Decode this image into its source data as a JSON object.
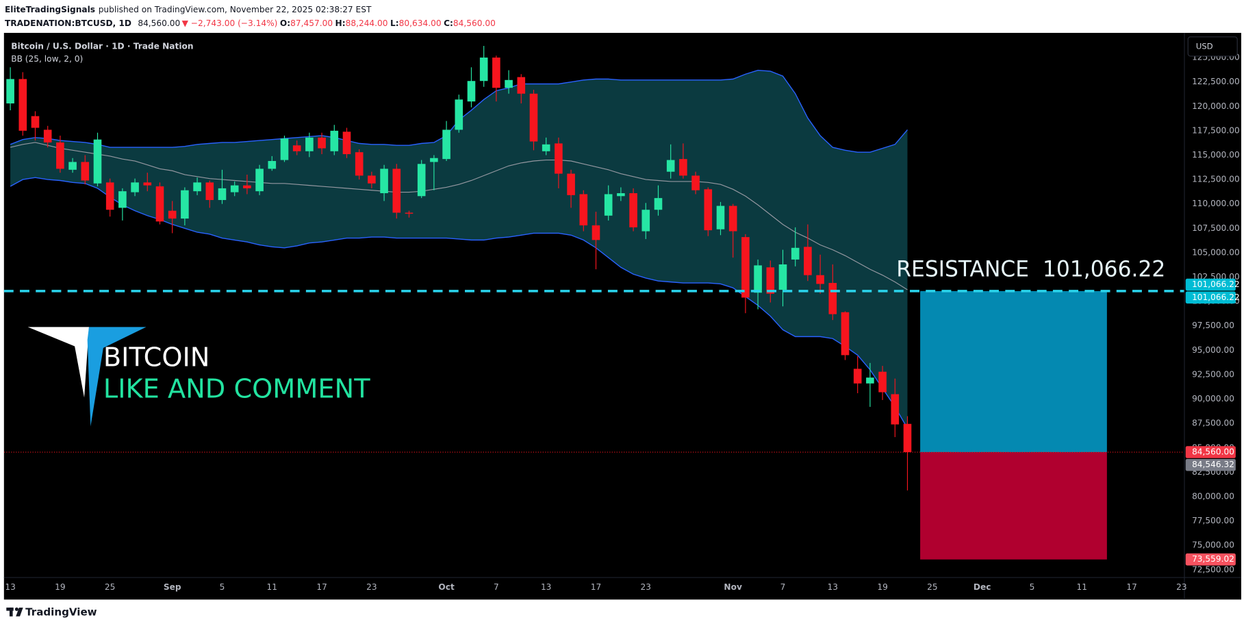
{
  "header": {
    "author": "EliteTradingSignals",
    "published": "published on TradingView.com, November 22, 2025 02:38:27 EST",
    "symbol": "TRADENATION:BTCUSD, 1D",
    "price": "84,560.00",
    "change": "▼ −2,743.00 (−3.14%)",
    "ohlc": [
      {
        "key": "O:",
        "value": "87,457.00"
      },
      {
        "key": "H:",
        "value": "88,244.00"
      },
      {
        "key": "L:",
        "value": "80,634.00"
      },
      {
        "key": "C:",
        "value": "84,560.00"
      }
    ]
  },
  "watermark": {
    "title": "BITCOIN",
    "subtitle": "LIKE AND COMMENT"
  },
  "footer": {
    "brand": "TradingView"
  },
  "chart_data": {
    "type": "candlestick",
    "title": "Bitcoin / U.S. Dollar · 1D · Trade Nation",
    "currency": "USD",
    "up_color": "#26e6a4",
    "down_color": "#f7151e",
    "grid": false,
    "categories": [
      "13",
      null,
      null,
      null,
      "19",
      null,
      null,
      null,
      "25",
      null,
      null,
      null,
      null,
      "Sep",
      null,
      null,
      null,
      "5",
      null,
      null,
      null,
      "11",
      null,
      null,
      null,
      "17",
      null,
      null,
      null,
      "23",
      null,
      null,
      null,
      null,
      null,
      "Oct",
      null,
      null,
      null,
      "7",
      null,
      null,
      null,
      "13",
      null,
      null,
      null,
      "17",
      null,
      null,
      null,
      "23",
      null,
      null,
      null,
      null,
      null,
      null,
      "Nov",
      null,
      null,
      null,
      "7",
      null,
      null,
      null,
      "13",
      null,
      null,
      null,
      "19",
      null,
      null,
      null,
      "25",
      null,
      null,
      null,
      "Dec",
      null,
      null,
      null,
      "5",
      null,
      null,
      null,
      "11",
      null,
      null,
      null,
      "17",
      null,
      null,
      null,
      "23"
    ],
    "open": [
      120300,
      122800,
      119000,
      117600,
      116300,
      113500,
      114300,
      112100,
      112200,
      109600,
      111200,
      112200,
      111800,
      109300,
      108500,
      111300,
      112200,
      110400,
      111200,
      111900,
      111300,
      113600,
      114500,
      116000,
      115400,
      116800,
      115400,
      117400,
      115300,
      112900,
      111100,
      113600,
      109100,
      110800,
      114300,
      114600,
      117600,
      120500,
      122600,
      125000,
      121900,
      123000,
      121300,
      115400,
      116200,
      113100,
      111000,
      107800,
      108800,
      110800,
      111100,
      107200,
      109400,
      113300,
      114600,
      112900,
      111500,
      107400,
      109800,
      106600,
      100900,
      103500,
      101200,
      104300,
      105600,
      102700,
      101900,
      98900,
      93100,
      91600,
      92800,
      90500,
      87457,
      null,
      null,
      null,
      null,
      null,
      null,
      null,
      null,
      null,
      null,
      null,
      null,
      null,
      null,
      null,
      null,
      null,
      null,
      null,
      null,
      null,
      null
    ],
    "high": [
      124000,
      123500,
      119500,
      118000,
      117000,
      114700,
      115000,
      117300,
      112600,
      111600,
      112600,
      113200,
      112200,
      110300,
      111700,
      112700,
      112400,
      113500,
      112300,
      113000,
      114000,
      114900,
      117000,
      116500,
      117300,
      117300,
      118100,
      117800,
      115600,
      113300,
      114000,
      114100,
      109300,
      114500,
      115000,
      118500,
      121200,
      124000,
      126200,
      125200,
      123700,
      123300,
      121700,
      116800,
      116800,
      113500,
      111400,
      109200,
      111900,
      111700,
      111600,
      110100,
      111900,
      116100,
      116200,
      113300,
      111700,
      110200,
      110000,
      106900,
      104300,
      104200,
      105300,
      107600,
      107900,
      104800,
      103800,
      99000,
      94400,
      93700,
      93400,
      92100,
      88244,
      null,
      null,
      null,
      null,
      null,
      null,
      null,
      null,
      null,
      null,
      null,
      null,
      null,
      null,
      null,
      null,
      null,
      null,
      null,
      null,
      null,
      null
    ],
    "low": [
      119600,
      117000,
      116500,
      115800,
      113200,
      113200,
      112000,
      111800,
      108700,
      108300,
      110800,
      111300,
      107900,
      107000,
      107800,
      110900,
      109600,
      110000,
      110800,
      111000,
      110900,
      113400,
      114300,
      115000,
      114800,
      115100,
      115000,
      114700,
      112500,
      111600,
      110300,
      108500,
      108600,
      110600,
      111400,
      114400,
      117300,
      119900,
      122000,
      120500,
      121300,
      120300,
      115500,
      115000,
      111600,
      109600,
      107200,
      103300,
      108300,
      110300,
      107200,
      106400,
      108800,
      112600,
      112600,
      111000,
      106700,
      106800,
      104500,
      98800,
      99200,
      99900,
      99500,
      103600,
      102100,
      100800,
      98100,
      94000,
      90600,
      89200,
      89900,
      86100,
      80634,
      null,
      null,
      null,
      null,
      null,
      null,
      null,
      null,
      null,
      null,
      null,
      null,
      null,
      null,
      null,
      null,
      null,
      null,
      null,
      null,
      null,
      null
    ],
    "close": [
      122800,
      117500,
      117800,
      116300,
      113600,
      114300,
      112400,
      116600,
      109400,
      111300,
      112200,
      111900,
      108200,
      108500,
      111400,
      112200,
      110400,
      111600,
      111900,
      111600,
      113600,
      114400,
      116700,
      115400,
      116800,
      115700,
      117500,
      115100,
      112900,
      112100,
      113600,
      109100,
      109000,
      114100,
      114700,
      117600,
      120700,
      122600,
      125000,
      121900,
      122700,
      121300,
      116400,
      116100,
      113100,
      110900,
      107800,
      106300,
      111000,
      111100,
      107600,
      109400,
      110600,
      114500,
      112900,
      111400,
      107300,
      109800,
      107200,
      100400,
      103700,
      100800,
      103800,
      105500,
      102700,
      101800,
      98700,
      94500,
      91600,
      92200,
      90700,
      87400,
      84560,
      null,
      null,
      null,
      null,
      null,
      null,
      null,
      null,
      null,
      null,
      null,
      null,
      null,
      null,
      null,
      null,
      null,
      null,
      null,
      null,
      null,
      null
    ],
    "indicator": {
      "name": "BB (25, low, 2, 0)",
      "fill_color": "#0b3a40",
      "band_color": "#2962ff",
      "basis_color": "#9598a1",
      "upper": [
        116100,
        116600,
        116800,
        116700,
        116500,
        116400,
        116300,
        116100,
        115800,
        115800,
        115800,
        115800,
        115800,
        115800,
        115900,
        116100,
        116200,
        116300,
        116300,
        116400,
        116500,
        116600,
        116700,
        116800,
        116900,
        117000,
        116800,
        116500,
        116200,
        116100,
        116100,
        116000,
        116000,
        116200,
        116300,
        117000,
        118600,
        119600,
        120700,
        121600,
        121900,
        122300,
        122300,
        122300,
        122300,
        122500,
        122700,
        122800,
        122800,
        122700,
        122700,
        122700,
        122700,
        122700,
        122700,
        122700,
        122700,
        122700,
        122800,
        123300,
        123700,
        123600,
        123100,
        121300,
        118800,
        117000,
        115800,
        115500,
        115300,
        115300,
        115700,
        116100,
        117600,
        null,
        null,
        null,
        null,
        null,
        null,
        null,
        null,
        null,
        null,
        null,
        null,
        null,
        null,
        null,
        null,
        null,
        null,
        null,
        null,
        null,
        null
      ],
      "basis": [
        115800,
        116100,
        116300,
        116000,
        115700,
        115500,
        115300,
        115100,
        114900,
        114600,
        114400,
        114000,
        113600,
        113400,
        113000,
        112800,
        112600,
        112500,
        112400,
        112300,
        112200,
        112100,
        112100,
        112000,
        111900,
        111800,
        111700,
        111600,
        111500,
        111400,
        111300,
        111200,
        111200,
        111300,
        111500,
        111700,
        112000,
        112400,
        112900,
        113400,
        113900,
        114200,
        114400,
        114500,
        114500,
        114400,
        114100,
        113800,
        113500,
        113100,
        112800,
        112500,
        112400,
        112300,
        112300,
        112300,
        112200,
        112000,
        111500,
        110800,
        109900,
        108900,
        107900,
        107100,
        106500,
        105800,
        105300,
        104700,
        104000,
        103300,
        102700,
        102000,
        101200,
        null,
        null,
        null,
        null,
        null,
        null,
        null,
        null,
        null,
        null,
        null,
        null,
        null,
        null,
        null,
        null,
        null,
        null,
        null,
        null,
        null,
        null
      ],
      "lower": [
        111800,
        112500,
        112700,
        112500,
        112400,
        112200,
        112100,
        111600,
        110700,
        109900,
        109300,
        108800,
        108400,
        107900,
        107500,
        107100,
        106900,
        106500,
        106300,
        106100,
        105800,
        105600,
        105500,
        105700,
        106000,
        106100,
        106300,
        106500,
        106500,
        106600,
        106600,
        106500,
        106500,
        106500,
        106500,
        106500,
        106400,
        106300,
        106300,
        106500,
        106600,
        106800,
        107000,
        107000,
        107000,
        106800,
        106300,
        105500,
        104500,
        103500,
        102800,
        102400,
        102100,
        102000,
        101900,
        101900,
        101900,
        101800,
        101400,
        100500,
        99600,
        98500,
        97100,
        96400,
        96400,
        96400,
        96200,
        95400,
        94500,
        93000,
        91100,
        89200,
        87000,
        null,
        null,
        null,
        null,
        null,
        null,
        null,
        null,
        null,
        null,
        null,
        null,
        null,
        null,
        null,
        null,
        null,
        null,
        null,
        null,
        null,
        null
      ]
    },
    "ylim": [
      71750,
      127450
    ],
    "yticks": [
      {
        "value": 72500,
        "label": "72,500.00"
      },
      {
        "value": 75000,
        "label": "75,000.00"
      },
      {
        "value": 77500,
        "label": "77,500.00"
      },
      {
        "value": 80000,
        "label": "80,000.00"
      },
      {
        "value": 82500,
        "label": "82,500.00"
      },
      {
        "value": 85000,
        "label": "85,000.00"
      },
      {
        "value": 87500,
        "label": "87,500.00"
      },
      {
        "value": 90000,
        "label": "90,000.00"
      },
      {
        "value": 92500,
        "label": "92,500.00"
      },
      {
        "value": 95000,
        "label": "95,000.00"
      },
      {
        "value": 97500,
        "label": "97,500.00"
      },
      {
        "value": 100000,
        "label": "100,000.00"
      },
      {
        "value": 102500,
        "label": "102,500.00"
      },
      {
        "value": 105000,
        "label": "105,000.00"
      },
      {
        "value": 107500,
        "label": "107,500.00"
      },
      {
        "value": 110000,
        "label": "110,000.00"
      },
      {
        "value": 112500,
        "label": "112,500.00"
      },
      {
        "value": 115000,
        "label": "115,000.00"
      },
      {
        "value": 117500,
        "label": "117,500.00"
      },
      {
        "value": 120000,
        "label": "120,000.00"
      },
      {
        "value": 122500,
        "label": "122,500.00"
      },
      {
        "value": 125000,
        "label": "125,000.00"
      }
    ],
    "resistance": {
      "value": 101066.22,
      "color": "#2ad4ec"
    },
    "position": {
      "target": 101066.22,
      "entry": 84546.32,
      "stop": 73559.02,
      "target_color": "#0489b1",
      "stop_color": "#b0002f"
    },
    "price_labels": [
      {
        "value": 101066.22,
        "label": "101,066.22",
        "color": "#00bcd4"
      },
      {
        "value": 101066.22,
        "label": "101,066.22",
        "color": "#00bcd4"
      },
      {
        "value": 84560,
        "label": "84,560.00",
        "color": "#f23645"
      },
      {
        "value": 84546.32,
        "label": "84,546.32",
        "color": "#787b86"
      },
      {
        "value": 73559.02,
        "label": "73,559.02",
        "color": "#f7525f"
      }
    ],
    "annotations": [
      "RESISTANCE  101,066.22"
    ]
  }
}
